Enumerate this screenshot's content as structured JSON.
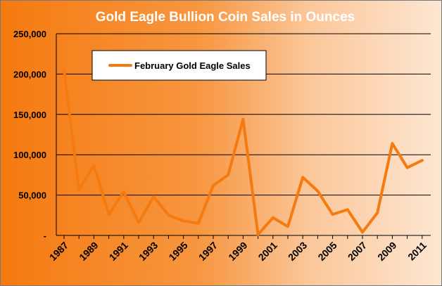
{
  "chart_data": {
    "type": "line",
    "title": "Gold Eagle Bullion Coin Sales in Ounces",
    "xlabel": "",
    "ylabel": "",
    "ylim": [
      0,
      250000
    ],
    "yticks": [
      0,
      50000,
      100000,
      150000,
      200000,
      250000
    ],
    "ytick_labels": [
      "-",
      "50,000",
      "100,000",
      "150,000",
      "200,000",
      "250,000"
    ],
    "xtick_labels": [
      "1987",
      "1989",
      "1991",
      "1993",
      "1995",
      "1997",
      "1999",
      "2001",
      "2003",
      "2005",
      "2007",
      "2009",
      "2011"
    ],
    "x": [
      1987,
      1988,
      1989,
      1990,
      1991,
      1992,
      1993,
      1994,
      1995,
      1996,
      1997,
      1998,
      1999,
      2000,
      2001,
      2002,
      2003,
      2004,
      2005,
      2006,
      2007,
      2008,
      2009,
      2010,
      2011
    ],
    "series": [
      {
        "name": "February Gold Eagle Sales",
        "color": "#f57a10",
        "values": [
          205000,
          57000,
          87000,
          26000,
          54000,
          16000,
          48000,
          25000,
          18000,
          15000,
          62000,
          75000,
          144000,
          1000,
          22000,
          11000,
          72000,
          55000,
          26000,
          32000,
          4000,
          28000,
          114000,
          84000,
          93000
        ]
      }
    ],
    "grid": "horizontal",
    "legend_position": "top-left"
  }
}
